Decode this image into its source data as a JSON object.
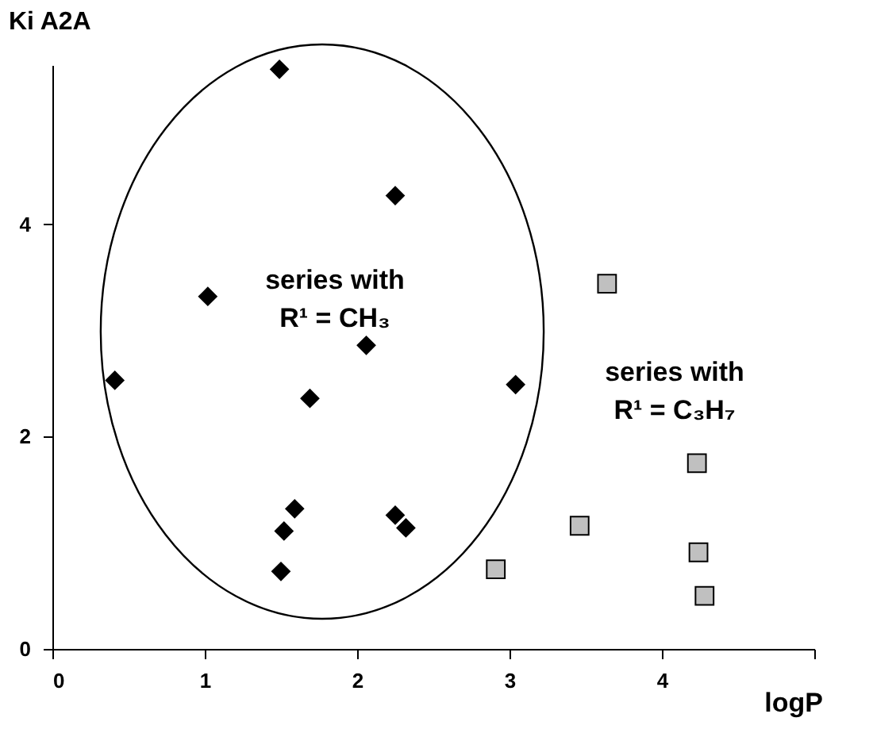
{
  "chart_data": {
    "type": "scatter",
    "xlabel": "logP",
    "ylabel": "Ki A2A",
    "xlim": [
      0,
      5
    ],
    "xticks": [
      0,
      1,
      2,
      3,
      4,
      {
        "value": 5,
        "label": null
      }
    ],
    "ylim": [
      0,
      5.5
    ],
    "yticks": [
      0,
      2,
      4
    ],
    "grid": false,
    "series": [
      {
        "color": "#000000",
        "marker": "diamond",
        "x": [
          1.49,
          2.25,
          1.02,
          2.06,
          0.41,
          1.69,
          1.59,
          1.52,
          1.5,
          2.25,
          2.32,
          3.04
        ],
        "values": [
          5.46,
          4.27,
          3.32,
          2.86,
          2.53,
          2.36,
          1.32,
          1.11,
          0.73,
          1.26,
          1.14,
          2.49
        ]
      },
      {
        "color": "#c0c0c0",
        "marker": "square",
        "x": [
          3.64,
          4.23,
          3.46,
          2.91,
          4.24,
          4.28
        ],
        "values": [
          3.44,
          1.75,
          1.16,
          0.75,
          0.91,
          0.5
        ]
      }
    ],
    "annotations": [
      "series with\nR¹ = CH₃",
      "series with\nR¹ = C₃H₇"
    ]
  }
}
